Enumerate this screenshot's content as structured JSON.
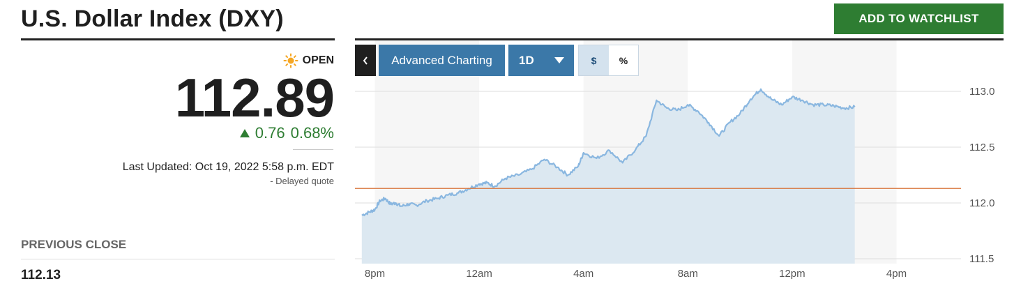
{
  "header": {
    "title": "U.S. Dollar Index (DXY)",
    "watchlist_label": "ADD TO WATCHLIST"
  },
  "quote": {
    "status": "OPEN",
    "price": "112.89",
    "change": "0.76",
    "change_pct": "0.68%",
    "last_updated": "Last Updated: Oct 19, 2022 5:58 p.m. EDT",
    "delayed": "-  Delayed quote",
    "previous_close_label": "PREVIOUS CLOSE",
    "previous_close": "112.13"
  },
  "toolbar": {
    "back_icon": "chevron-left-icon",
    "advanced_label": "Advanced Charting",
    "range_label": "1D",
    "range_icon": "caret-down-icon",
    "dollar_label": "$",
    "percent_label": "%"
  },
  "colors": {
    "accent_green": "#2e7d32",
    "toolbar_blue": "#3b78a8",
    "line": "#8ab7e0",
    "area": "#dce8f1",
    "prev_close_line": "#d8763c"
  },
  "chart_data": {
    "type": "area",
    "x_tick_labels": [
      "8pm",
      "12am",
      "4am",
      "8am",
      "12pm",
      "4pm"
    ],
    "y_tick_labels": [
      "113.0",
      "112.5",
      "112.0",
      "111.5"
    ],
    "ylim": [
      111.5,
      113.0
    ],
    "previous_close": 112.13,
    "x_unit": "hours since 8pm",
    "series": [
      {
        "x": [
          -0.5,
          -0.2,
          0,
          0.2,
          0.4,
          0.6,
          0.8,
          1.0,
          1.3,
          1.6,
          2.0,
          2.4,
          2.8,
          3.2,
          3.6,
          4.0,
          4.3,
          4.6,
          5.0,
          5.5,
          6.0,
          6.5,
          7.0,
          7.4,
          7.8,
          8.0,
          8.5,
          9.0,
          9.5,
          10.0,
          10.4,
          10.8,
          11.2,
          11.6,
          12.0,
          12.4,
          12.8,
          13.2,
          13.6,
          14.0,
          14.4,
          14.8,
          15.2,
          15.6,
          16.0,
          16.4,
          16.8,
          17.2,
          17.6,
          18.0,
          18.4
        ],
        "values": [
          111.89,
          111.92,
          111.94,
          112.02,
          112.04,
          111.99,
          112.0,
          111.97,
          111.99,
          111.98,
          112.02,
          112.04,
          112.07,
          112.09,
          112.13,
          112.17,
          112.18,
          112.15,
          112.22,
          112.25,
          112.3,
          112.39,
          112.32,
          112.25,
          112.33,
          112.45,
          112.4,
          112.47,
          112.36,
          112.48,
          112.6,
          112.92,
          112.85,
          112.83,
          112.88,
          112.82,
          112.72,
          112.6,
          112.72,
          112.8,
          112.93,
          113.02,
          112.93,
          112.88,
          112.95,
          112.92,
          112.88,
          112.88,
          112.87,
          112.85,
          112.86
        ]
      }
    ]
  }
}
